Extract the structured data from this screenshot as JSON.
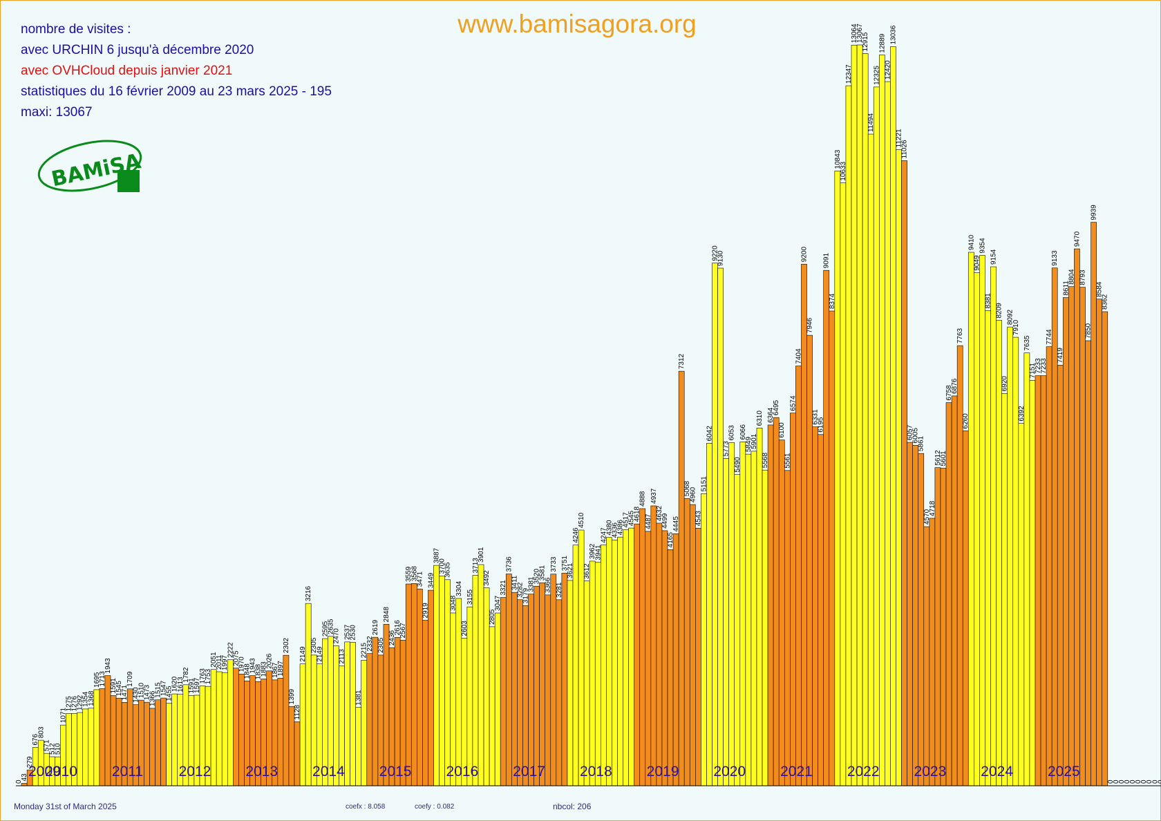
{
  "header": {
    "line1": "nombre de visites :",
    "line2": "avec URCHIN 6 jusqu'à décembre 2020",
    "line3": "avec OVHCloud depuis janvier 2021",
    "line4": "statistiques du 16 février 2009 au 23 mars  2025 -  195",
    "line5": "maxi: 13067",
    "site": "www.bamisagora.org"
  },
  "logo": {
    "text": "BAMiSA"
  },
  "footer": {
    "date": "Monday 31st of March 2025",
    "coefx": "coefx : 8.058",
    "coefy": "coefy : 0.082",
    "nbcol": "nbcol: 206"
  },
  "colors": {
    "orange": "#f28c1c",
    "yellow": "#ffff20",
    "year": "#2a10b0",
    "label": "#000000"
  },
  "chart_data": {
    "type": "bar",
    "title": "www.bamisagora.org",
    "ylim": [
      0,
      13067
    ],
    "grid": false,
    "years": [
      "2009",
      "2010",
      "2011",
      "2012",
      "2013",
      "2014",
      "2015",
      "2016",
      "2017",
      "2018",
      "2019",
      "2020",
      "2021",
      "2022",
      "2023",
      "2024",
      "2025"
    ],
    "year_start": [
      0,
      3,
      15,
      27,
      39,
      51,
      63,
      75,
      87,
      99,
      111,
      123,
      135,
      147,
      159,
      171,
      183
    ],
    "year_colors": [
      "orange",
      "yellow",
      "orange",
      "yellow",
      "orange",
      "yellow",
      "orange",
      "yellow",
      "orange",
      "yellow",
      "orange",
      "yellow",
      "orange",
      "yellow",
      "orange",
      "yellow",
      "orange"
    ],
    "values": [
      0,
      43,
      279,
      676,
      803,
      571,
      512,
      510,
      1071,
      1275,
      1276,
      1292,
      1354,
      1368,
      1695,
      1713,
      1943,
      1591,
      1545,
      1471,
      1709,
      1430,
      1510,
      1473,
      1366,
      1515,
      1547,
      1455,
      1620,
      1613,
      1782,
      1591,
      1597,
      1763,
      1753,
      2051,
      2011,
      1997,
      2222,
      2075,
      1970,
      1848,
      1943,
      1838,
      1883,
      2026,
      1867,
      1897,
      2302,
      1399,
      1128,
      2149,
      3216,
      2305,
      2149,
      2595,
      2635,
      2470,
      2113,
      2537,
      2530,
      1381,
      2215,
      2332,
      2619,
      2305,
      2848,
      2436,
      2616,
      2567,
      3559,
      3568,
      3471,
      2919,
      3449,
      3887,
      3700,
      3635,
      3048,
      3304,
      2603,
      3155,
      3713,
      3901,
      3492,
      2805,
      3047,
      3321,
      3736,
      3411,
      3282,
      3179,
      3381,
      3520,
      3581,
      3366,
      3733,
      3281,
      3751,
      3621,
      4246,
      4510,
      3612,
      3962,
      3941,
      4247,
      4380,
      4336,
      4386,
      4517,
      4545,
      4618,
      4888,
      4487,
      4937,
      4632,
      4499,
      4165,
      4445,
      7312,
      5068,
      4960,
      4543,
      5151,
      6042,
      9220,
      9130,
      5773,
      6053,
      5490,
      6066,
      5849,
      5901,
      6310,
      5568,
      6364,
      6495,
      6100,
      5561,
      6574,
      7404,
      9200,
      7946,
      6331,
      6195,
      9091,
      8374,
      10843,
      10633,
      12347,
      13064,
      13067,
      12915,
      11494,
      12325,
      12889,
      12420,
      13036,
      11221,
      11026,
      6057,
      6005,
      5861,
      4570,
      4718,
      5612,
      5601,
      6758,
      6876,
      7763,
      6260,
      9410,
      9049,
      9354,
      8381,
      9154,
      8209,
      6920,
      8092,
      7910,
      6392,
      7635,
      7151,
      7233,
      7233,
      7744,
      9133,
      7419,
      8611,
      8804,
      9470,
      8793,
      7850,
      9939,
      8584,
      8362,
      0,
      0,
      0,
      0,
      0,
      0,
      0,
      0,
      0,
      0,
      0
    ],
    "shown_labels": 195
  }
}
